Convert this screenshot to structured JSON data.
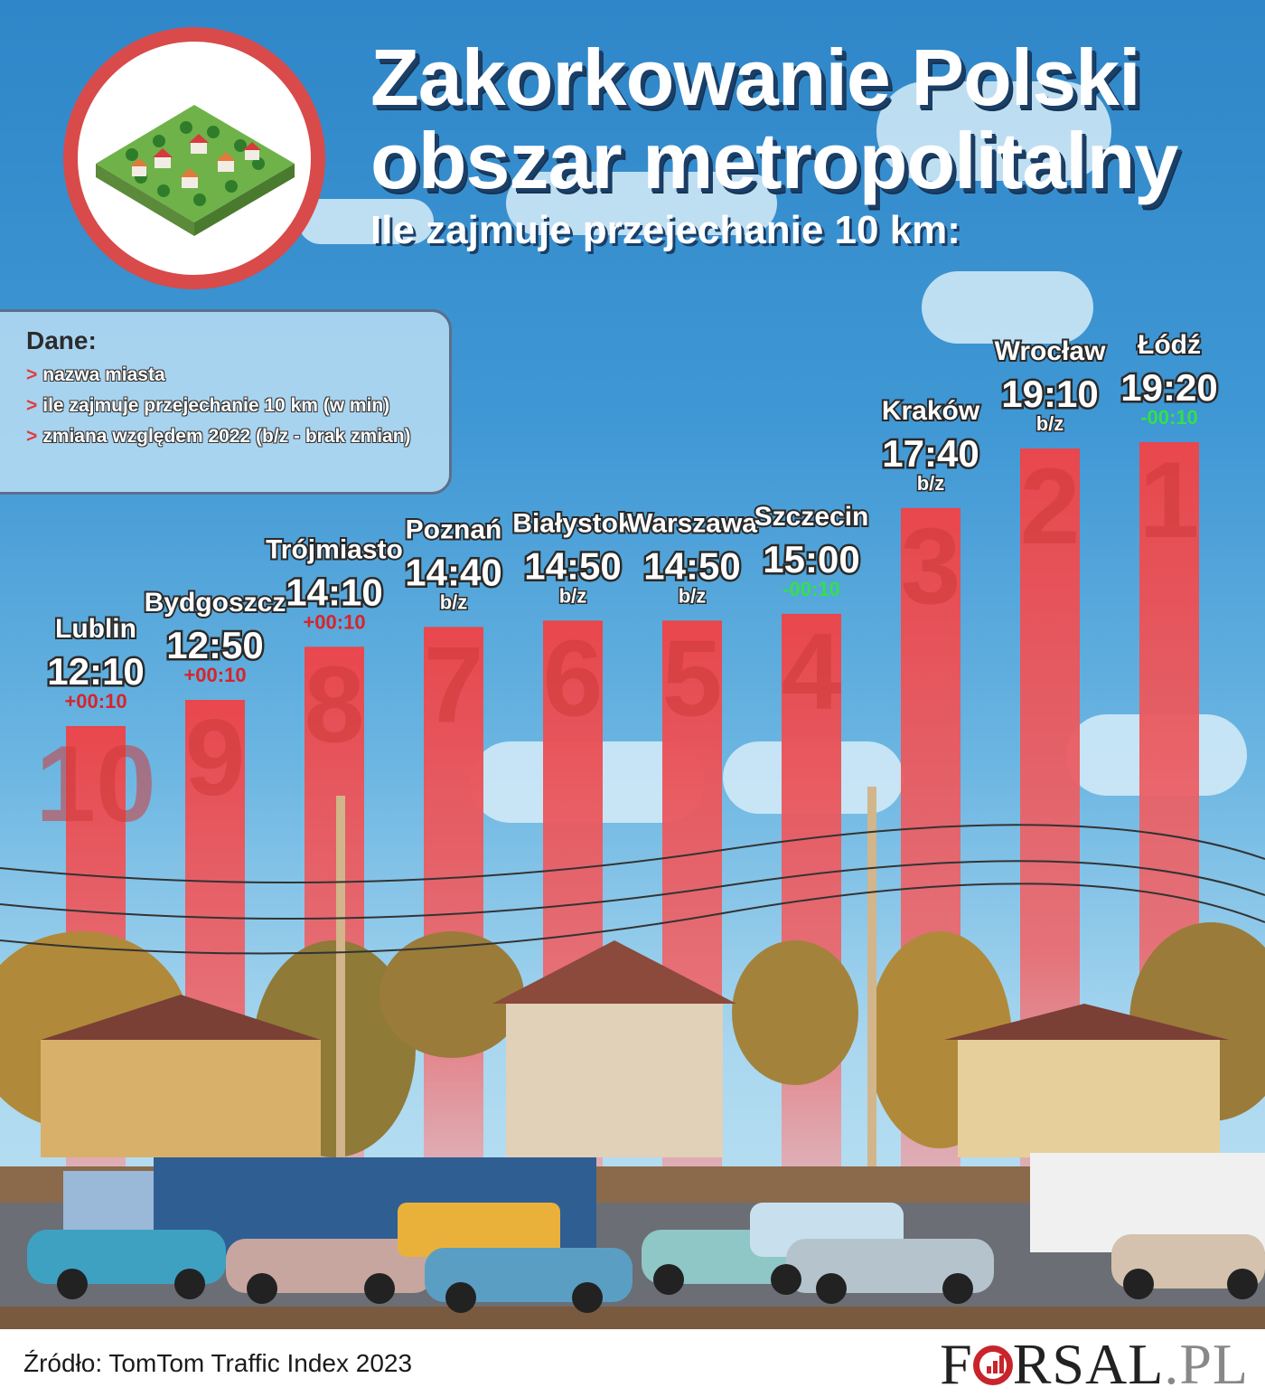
{
  "title_line1": "Zakorkowanie Polski",
  "title_line2": "obszar metropolitalny",
  "subtitle": "Ile zajmuje przejechanie 10 km:",
  "legend": {
    "title": "Dane:",
    "items": [
      "nazwa miasta",
      "ile zajmuje przejechanie 10 km (w min)",
      "zmiana względem 2022 (b/z - brak zmian)"
    ]
  },
  "chart_data": {
    "type": "bar",
    "categories": [
      "Lublin",
      "Bydgoszcz",
      "Trójmiasto",
      "Poznań",
      "Białystok",
      "Warszawa",
      "Szczecin",
      "Kraków",
      "Wrocław",
      "Łódź"
    ],
    "time_labels": [
      "12:10",
      "12:50",
      "14:10",
      "14:40",
      "14:50",
      "14:50",
      "15:00",
      "17:40",
      "19:10",
      "19:20"
    ],
    "values_min": [
      12.17,
      12.83,
      14.17,
      14.67,
      14.83,
      14.83,
      15.0,
      17.67,
      19.17,
      19.33
    ],
    "change_labels": [
      "+00:10",
      "+00:10",
      "+00:10",
      "b/z",
      "b/z",
      "b/z",
      "-00:10",
      "b/z",
      "b/z",
      "-00:10"
    ],
    "ranks": [
      "10",
      "9",
      "8",
      "7",
      "6",
      "5",
      "4",
      "3",
      "2",
      "1"
    ]
  },
  "colors": {
    "bar": "#e84a4f",
    "increase": "#d8232a",
    "decrease": "#33e04a",
    "no_change": "#ffffff",
    "accent": "#d94a4a"
  },
  "footer": {
    "source": "Źródło: TomTom Traffic Index 2023",
    "brand_f": "F",
    "brand_rest": "RSAL",
    "brand_pl": ".PL"
  }
}
